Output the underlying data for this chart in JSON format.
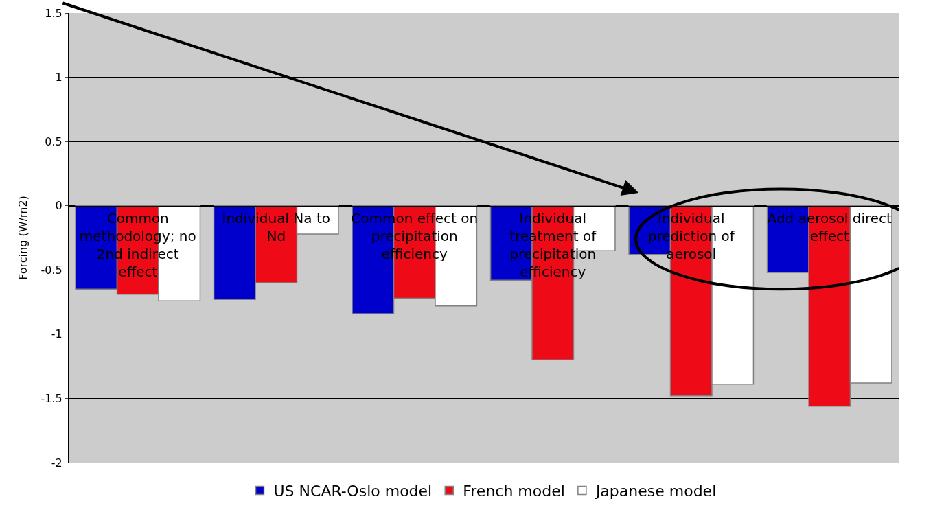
{
  "chart_data": {
    "type": "bar",
    "ylabel": "Forcing (W/m2)",
    "categories": [
      "Common methodology; no 2nd indirect effect",
      "Individual Na to Nd",
      "Common effect on precipitation efficiency",
      "Individual treatment of precipitation efficiency",
      "Individual prediction of aerosol",
      "Add aerosol direct effect"
    ],
    "series": [
      {
        "name": "US NCAR-Oslo model",
        "color": "#0000cc",
        "values": [
          -0.65,
          -0.73,
          -0.84,
          -0.58,
          -0.38,
          -0.52
        ]
      },
      {
        "name": "French model",
        "color": "#ee0a16",
        "values": [
          -0.69,
          -0.6,
          -0.72,
          -1.2,
          -1.48,
          -1.56
        ]
      },
      {
        "name": "Japanese model",
        "color": "#ffffff",
        "values": [
          -0.74,
          -0.22,
          -0.78,
          -0.35,
          -1.39,
          -1.38
        ]
      }
    ],
    "ylim": [
      -2,
      1.5
    ],
    "yticks": [
      -2,
      -1.5,
      -1,
      -0.5,
      0,
      0.5,
      1,
      1.5
    ],
    "grid": "y",
    "legend": "bottom"
  }
}
